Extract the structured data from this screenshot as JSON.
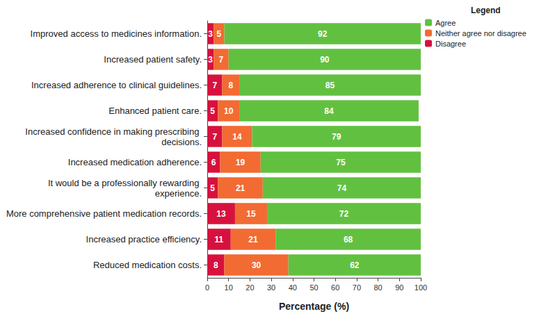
{
  "chart_data": {
    "type": "bar",
    "orientation": "horizontal",
    "stacked": true,
    "data_labels": true,
    "grid": false,
    "legend": "top-right",
    "legend_title": "Legend",
    "xlabel": "Percentage (%)",
    "xlim": [
      0,
      100
    ],
    "xticks": [
      0,
      10,
      20,
      30,
      40,
      50,
      60,
      70,
      80,
      90,
      100
    ],
    "categories": [
      "Improved access to medicines information.",
      "Increased patient safety.",
      "Increased adherence to clinical guidelines.",
      "Enhanced patient care.",
      "Increased confidence in making prescribing decisions.",
      "Increased medication adherence.",
      "It would be a professionally rewarding experience.",
      "More comprehensive patient medication records.",
      "Increased practice efficiency.",
      "Reduced medication costs."
    ],
    "series": [
      {
        "name": "Disagree",
        "color": "#d7113d",
        "values": [
          3,
          3,
          7,
          5,
          7,
          6,
          5,
          13,
          11,
          8
        ]
      },
      {
        "name": "Neither agree nor disagree",
        "color": "#f26b32",
        "values": [
          5,
          7,
          8,
          10,
          14,
          19,
          21,
          15,
          21,
          30
        ]
      },
      {
        "name": "Agree",
        "color": "#62c040",
        "values": [
          92,
          90,
          85,
          84,
          79,
          75,
          74,
          72,
          68,
          62
        ]
      }
    ]
  }
}
